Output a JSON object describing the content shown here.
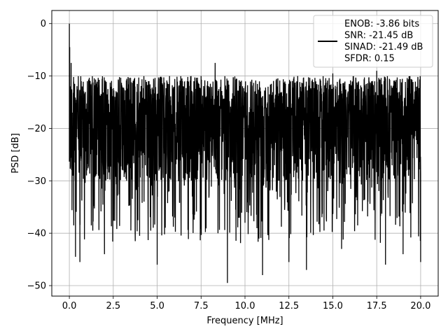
{
  "chart_data": {
    "type": "line",
    "xlabel": "Frequency [MHz]",
    "ylabel": "PSD [dB]",
    "xlim": [
      -1.0,
      21.0
    ],
    "ylim": [
      -52.0,
      2.5
    ],
    "xticks": [
      0.0,
      2.5,
      5.0,
      7.5,
      10.0,
      12.5,
      15.0,
      17.5,
      20.0
    ],
    "xtick_labels": [
      "0.0",
      "2.5",
      "5.0",
      "7.5",
      "10.0",
      "12.5",
      "15.0",
      "17.5",
      "20.0"
    ],
    "yticks": [
      0,
      -10,
      -20,
      -30,
      -40,
      -50
    ],
    "ytick_labels": [
      "0",
      "−10",
      "−20",
      "−30",
      "−40",
      "−50"
    ],
    "grid": true,
    "legend_position": "top-right",
    "line_color": "#000000",
    "legend_lines": [
      "ENOB: -3.86 bits",
      "SNR: -21.45 dB",
      "SINAD: -21.49 dB",
      "SFDR: 0.15"
    ],
    "series": [
      {
        "x": [
          0.0,
          0.02,
          0.05,
          0.1,
          0.15,
          0.2,
          0.25,
          0.3,
          0.35,
          0.4,
          0.5,
          0.6,
          0.7,
          0.8,
          1.0,
          1.25,
          1.5,
          2.0,
          2.5,
          3.0,
          3.5,
          4.0,
          4.5,
          5.0,
          5.5,
          6.0,
          6.5,
          7.0,
          7.5,
          8.0,
          8.3,
          8.5,
          9.0,
          9.5,
          10.0,
          10.5,
          11.0,
          11.5,
          12.0,
          12.5,
          13.0,
          13.5,
          14.0,
          14.5,
          15.0,
          15.5,
          16.0,
          16.5,
          17.0,
          17.5,
          18.0,
          18.5,
          19.0,
          19.5,
          20.0
        ],
        "y": [
          0.0,
          -4.5,
          -12.0,
          -7.5,
          -25.0,
          -29.0,
          -38.5,
          -11.5,
          -44.5,
          -16.0,
          -22.0,
          -45.5,
          -14.5,
          -19.0,
          -28.0,
          -38.5,
          -12.0,
          -44.0,
          -20.5,
          -24.0,
          -13.0,
          -40.5,
          -11.0,
          -46.0,
          -14.0,
          -37.0,
          -12.0,
          -33.0,
          -10.0,
          -26.5,
          -7.5,
          -23.0,
          -49.5,
          -10.5,
          -38.0,
          -18.5,
          -48.0,
          -11.5,
          -24.5,
          -45.5,
          -10.0,
          -47.0,
          -25.0,
          -39.5,
          -9.5,
          -43.0,
          -20.0,
          -12.5,
          -34.0,
          -9.0,
          -46.0,
          -11.5,
          -44.0,
          -20.0,
          -45.5
        ]
      }
    ],
    "noise": {
      "points": 2400,
      "center_db": -19.5,
      "upper_envelope_db": -10.0,
      "lower_typical_db": -30.0,
      "min_db": -50.0
    }
  }
}
